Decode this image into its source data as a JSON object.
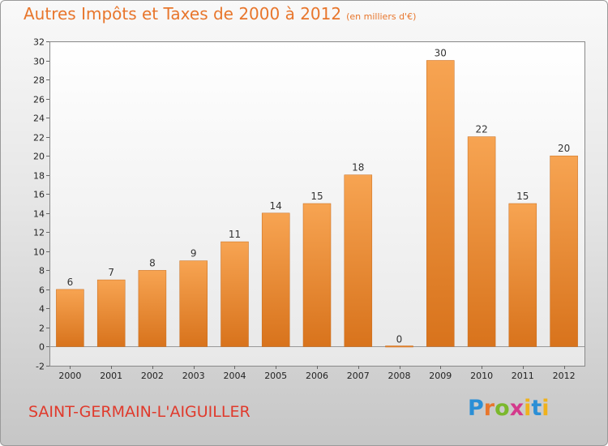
{
  "title": "Autres Impôts et Taxes de 2000 à 2012",
  "unit": "(en milliers d'€)",
  "commune": "SAINT-GERMAIN-L'AIGUILLER",
  "logo": {
    "text": "Proxiti",
    "brand_colors": [
      "#2b8fd6",
      "#e8762c",
      "#7bb82c",
      "#d43a8c",
      "#f0b21c"
    ]
  },
  "chart_data": {
    "type": "bar",
    "categories": [
      "2000",
      "2001",
      "2002",
      "2003",
      "2004",
      "2005",
      "2006",
      "2007",
      "2008",
      "2009",
      "2010",
      "2011",
      "2012"
    ],
    "values": [
      6,
      7,
      8,
      9,
      11,
      14,
      15,
      18,
      0,
      30,
      22,
      15,
      20
    ],
    "yticks": [
      -2,
      0,
      2,
      4,
      6,
      8,
      10,
      12,
      14,
      16,
      18,
      20,
      22,
      24,
      26,
      28,
      30,
      32
    ],
    "ylim": [
      -2,
      32
    ],
    "grid": false,
    "bar_color": "#f0923a",
    "title_color": "#e8762c",
    "label_color": "#e03a2c"
  }
}
